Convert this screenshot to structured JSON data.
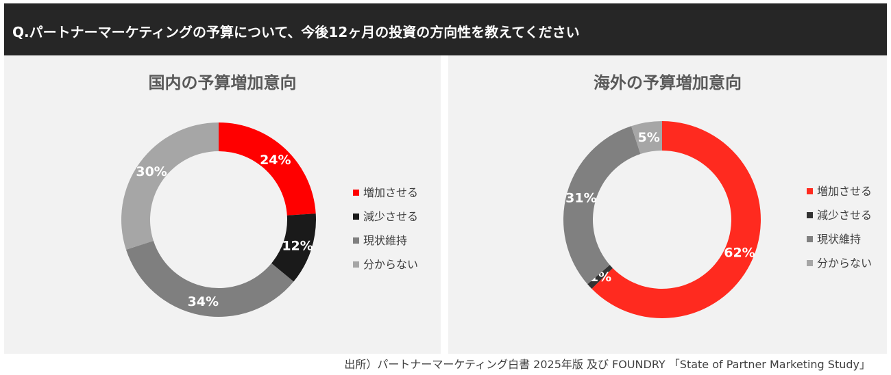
{
  "header": {
    "question": "Q.パートナーマーケティングの予算について、今後12ヶ月の投資の方向性を教えてください"
  },
  "chart_data": [
    {
      "type": "pie",
      "title": "国内の予算増加意向",
      "categories": [
        "増加させる",
        "減少させる",
        "現状維持",
        "分からない"
      ],
      "values": [
        24,
        12,
        34,
        30
      ],
      "labels": [
        "24%",
        "12%",
        "34%",
        "30%"
      ],
      "colors": [
        "#ff0000",
        "#1a1a1a",
        "#7f7f7f",
        "#a6a6a6"
      ],
      "legend_position": "right"
    },
    {
      "type": "pie",
      "title": "海外の予算増加意向",
      "categories": [
        "増加させる",
        "減少させる",
        "現状維持",
        "分からない"
      ],
      "values": [
        62,
        1,
        31,
        5
      ],
      "labels": [
        "62%",
        "1%",
        "31%",
        "5%"
      ],
      "colors": [
        "#ff2a1f",
        "#333333",
        "#808080",
        "#a6a6a6"
      ],
      "legend_position": "right"
    }
  ],
  "footer": {
    "source": "出所）パートナーマーケティング白書 2025年版 及び FOUNDRY 「State of Partner Marketing Study」"
  }
}
